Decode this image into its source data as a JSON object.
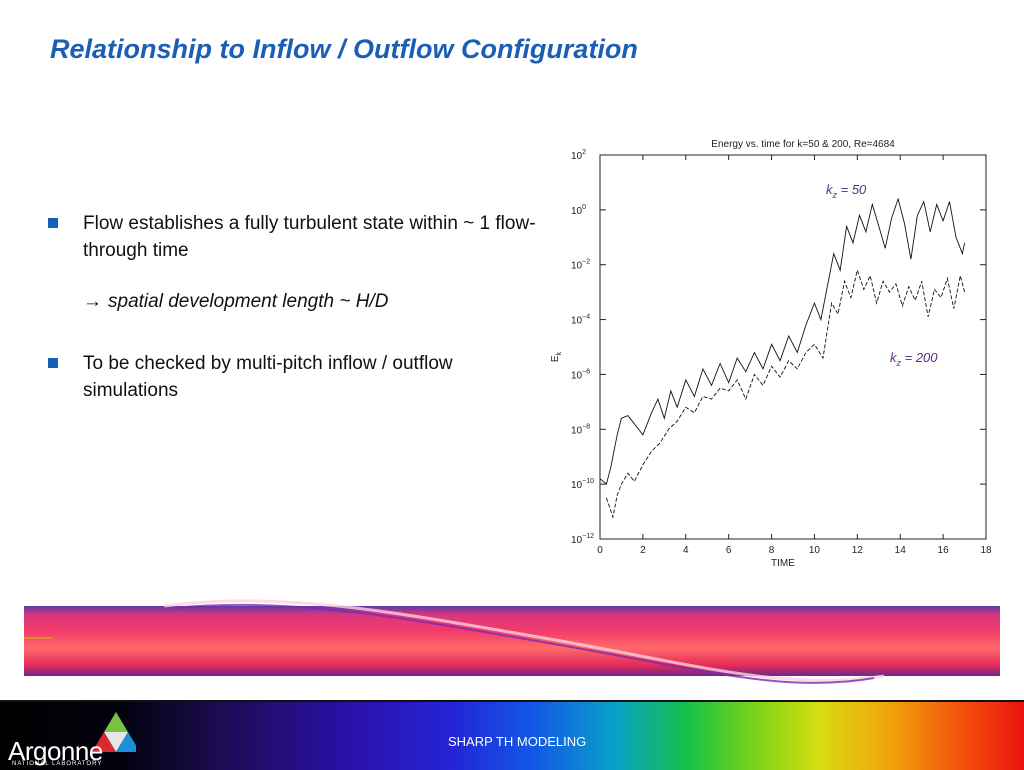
{
  "slide": {
    "title": "Relationship to Inflow / Outflow Configuration",
    "bullets": [
      "Flow establishes a fully turbulent state within ~ 1 flow-through time",
      "To be checked by multi-pitch  inflow / outflow simulations"
    ],
    "sub_arrow": "→",
    "sub_text": "spatial development length ~ H/D"
  },
  "footer": {
    "logo_text": "Argonne",
    "logo_subtext": "NATIONAL LABORATORY",
    "label": "SHARP TH MODELING"
  },
  "chart_data": {
    "type": "line",
    "title": "Energy vs. time for k=50 & 200, Re=4684",
    "xlabel": "TIME",
    "ylabel": "E_k",
    "xlim": [
      0,
      18
    ],
    "ylim_log10": [
      -12,
      2
    ],
    "y_scale": "log",
    "xticks": [
      "0",
      "2",
      "4",
      "6",
      "8",
      "10",
      "12",
      "14",
      "16",
      "18"
    ],
    "ytick_exponents": [
      "2",
      "0",
      "−2",
      "−4",
      "−6",
      "−8",
      "−10",
      "−12"
    ],
    "annotations": [
      {
        "text_base": "k",
        "text_sub": "z",
        "text_rest": " = 50",
        "series": "k_z = 50"
      },
      {
        "text_base": "k",
        "text_sub": "z",
        "text_rest": " = 200",
        "series": "k_z = 200"
      }
    ],
    "series": [
      {
        "name": "k_z = 50",
        "style": "solid",
        "x": [
          0.0,
          0.3,
          0.5,
          0.8,
          1.0,
          1.3,
          1.6,
          2.0,
          2.4,
          2.7,
          3.0,
          3.3,
          3.6,
          4.0,
          4.4,
          4.8,
          5.2,
          5.6,
          6.0,
          6.4,
          6.8,
          7.2,
          7.6,
          8.0,
          8.4,
          8.8,
          9.2,
          9.6,
          10.0,
          10.3,
          10.6,
          10.9,
          11.2,
          11.5,
          11.8,
          12.1,
          12.4,
          12.7,
          13.0,
          13.3,
          13.6,
          13.9,
          14.2,
          14.5,
          14.8,
          15.1,
          15.4,
          15.7,
          16.0,
          16.3,
          16.6,
          16.9,
          17.0
        ],
        "log10_y": [
          -9.8,
          -10.0,
          -9.4,
          -8.2,
          -7.6,
          -7.5,
          -7.8,
          -8.2,
          -7.4,
          -6.9,
          -7.6,
          -6.6,
          -7.2,
          -6.2,
          -6.8,
          -5.8,
          -6.4,
          -5.6,
          -6.3,
          -5.4,
          -5.9,
          -5.2,
          -5.8,
          -4.9,
          -5.5,
          -4.6,
          -5.2,
          -4.2,
          -3.4,
          -4.0,
          -2.8,
          -1.6,
          -2.2,
          -0.6,
          -1.2,
          -0.2,
          -0.8,
          0.2,
          -0.6,
          -1.4,
          -0.3,
          0.4,
          -0.5,
          -1.8,
          -0.2,
          0.3,
          -0.8,
          0.2,
          -0.4,
          0.3,
          -1.0,
          -1.6,
          -1.2
        ]
      },
      {
        "name": "k_z = 200",
        "style": "dashed",
        "x": [
          0.3,
          0.6,
          0.8,
          1.0,
          1.3,
          1.6,
          2.0,
          2.4,
          2.8,
          3.2,
          3.6,
          4.0,
          4.4,
          4.8,
          5.2,
          5.6,
          6.0,
          6.4,
          6.8,
          7.2,
          7.6,
          8.0,
          8.4,
          8.8,
          9.2,
          9.6,
          10.0,
          10.4,
          10.8,
          11.1,
          11.4,
          11.7,
          12.0,
          12.3,
          12.6,
          12.9,
          13.2,
          13.5,
          13.8,
          14.1,
          14.4,
          14.7,
          15.0,
          15.3,
          15.6,
          15.9,
          16.2,
          16.5,
          16.8,
          17.0
        ],
        "log10_y": [
          -10.5,
          -11.2,
          -10.4,
          -10.0,
          -9.6,
          -9.9,
          -9.3,
          -8.8,
          -8.5,
          -8.0,
          -7.7,
          -7.2,
          -7.4,
          -6.8,
          -6.9,
          -6.5,
          -6.6,
          -6.2,
          -6.9,
          -6.0,
          -6.4,
          -5.7,
          -6.1,
          -5.5,
          -5.8,
          -5.2,
          -4.9,
          -5.4,
          -3.4,
          -3.8,
          -2.6,
          -3.2,
          -2.2,
          -2.9,
          -2.4,
          -3.4,
          -2.6,
          -3.0,
          -2.7,
          -3.5,
          -2.8,
          -3.3,
          -2.6,
          -3.9,
          -2.9,
          -3.2,
          -2.5,
          -3.6,
          -2.4,
          -3.0
        ]
      }
    ]
  }
}
